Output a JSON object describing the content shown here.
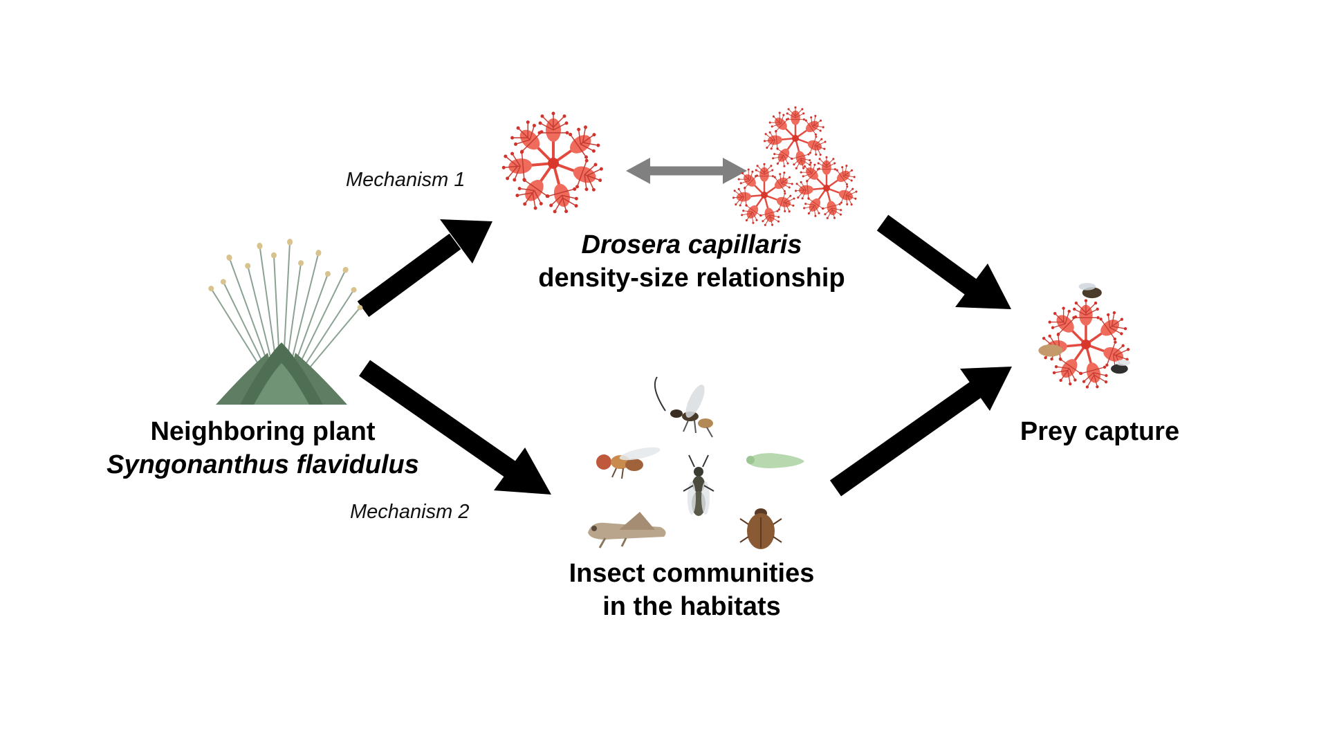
{
  "labels": {
    "mechanism1": "Mechanism 1",
    "mechanism2": "Mechanism 2",
    "neighbor_line1": "Neighboring plant",
    "neighbor_line2": "Syngonanthus flavidulus",
    "drosera_line1": "Drosera capillaris",
    "drosera_line2": "density-size relationship",
    "insects_line1": "Insect communities",
    "insects_line2": "in the habitats",
    "prey": "Prey capture"
  },
  "icons": {
    "neighbor_plant": "grass-plant-icon",
    "drosera_single": "sundew-icon",
    "drosera_cluster": "sundew-cluster-icon",
    "prey_plant": "sundew-with-insects-icon",
    "insects": [
      "wasp-icon",
      "fruit-fly-icon",
      "leafhopper-icon",
      "parasitoid-wasp-icon",
      "grasshopper-icon",
      "beetle-icon"
    ]
  },
  "colors": {
    "arrow": "#000000",
    "double_arrow": "#808080",
    "sundew": "#e8443a",
    "grass": "#6f8f6a"
  }
}
